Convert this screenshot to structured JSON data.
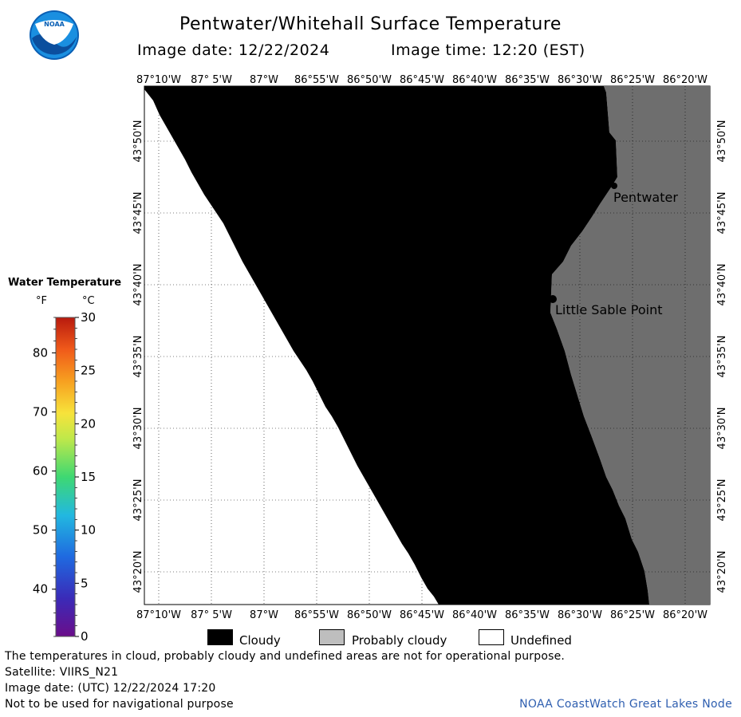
{
  "header": {
    "title": "Pentwater/Whitehall Surface Temperature",
    "image_date_label": "Image date: 12/22/2024",
    "image_time_label": "Image time: 12:20 (EST)",
    "logo_text": "NOAA"
  },
  "map": {
    "longitude_labels": [
      "87°10'W",
      "87° 5'W",
      "87°W",
      "86°55'W",
      "86°50'W",
      "86°45'W",
      "86°40'W",
      "86°35'W",
      "86°30'W",
      "86°25'W",
      "86°20'W"
    ],
    "latitude_labels": [
      "43°50'N",
      "43°45'N",
      "43°40'N",
      "43°35'N",
      "43°30'N",
      "43°25'N",
      "43°20'N"
    ],
    "places": [
      {
        "name": "Pentwater"
      },
      {
        "name": "Little Sable Point"
      }
    ],
    "colors": {
      "cloudy": "#000000",
      "land": "#6e6e6e",
      "undefined": "#ffffff"
    }
  },
  "legend": {
    "title": "Water Temperature",
    "unit_f": "°F",
    "unit_c": "°C",
    "f_ticks": [
      "80",
      "70",
      "60",
      "50",
      "40"
    ],
    "c_ticks": [
      "30",
      "25",
      "20",
      "15",
      "10",
      "5",
      "0"
    ],
    "colors": [
      "#6a0d8a",
      "#3a2bb8",
      "#1f6ae0",
      "#22b8e0",
      "#3ed872",
      "#bfe84a",
      "#f7e33b",
      "#f7a020",
      "#f05a1a",
      "#b81a0e"
    ]
  },
  "key": {
    "cloudy": "Cloudy",
    "probably_cloudy": "Probably cloudy",
    "undefined": "Undefined",
    "colors": {
      "cloudy": "#000000",
      "probably_cloudy": "#bebebe",
      "undefined": "#ffffff"
    }
  },
  "notes": {
    "disclaimer": "The temperatures in cloud, probably cloudy and undefined areas are not for operational purpose.",
    "satellite": "Satellite: VIIRS_N21",
    "utc_date": "Image date: (UTC) 12/22/2024  17:20",
    "navigation": "Not to be used for navigational purpose",
    "credit": "NOAA CoastWatch Great Lakes Node"
  }
}
